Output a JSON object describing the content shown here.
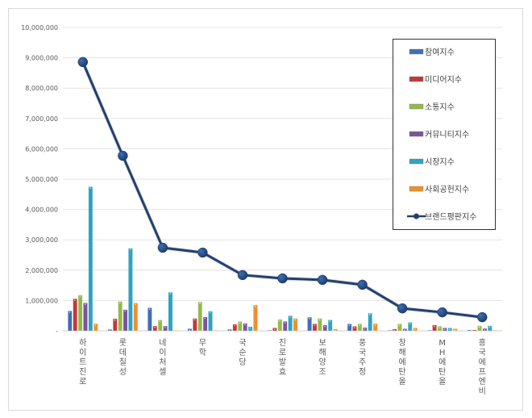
{
  "chart_data": {
    "type": "bar",
    "title": "",
    "xlabel": "",
    "ylabel": "",
    "ylim": [
      0,
      10000000
    ],
    "yticks": [
      "-",
      "1,000,000",
      "2,000,000",
      "3,000,000",
      "4,000,000",
      "5,000,000",
      "6,000,000",
      "7,000,000",
      "8,000,000",
      "9,000,000",
      "10,000,000"
    ],
    "grid": true,
    "legend_position": "right",
    "categories": [
      "하이트진로",
      "롯데칠성",
      "네이처셀",
      "무학",
      "국순당",
      "진로발효",
      "보해양조",
      "풍국주정",
      "창해에탄올",
      "MH에탄올",
      "흥국에프엔비"
    ],
    "series": [
      {
        "name": "참여지수",
        "type": "bar",
        "color": "#3f6fb5",
        "values": [
          660000,
          50000,
          760000,
          70000,
          50000,
          20000,
          450000,
          230000,
          20000,
          20000,
          30000
        ]
      },
      {
        "name": "미디어지수",
        "type": "bar",
        "color": "#c0393b",
        "values": [
          1060000,
          400000,
          160000,
          410000,
          220000,
          100000,
          230000,
          150000,
          60000,
          190000,
          30000
        ]
      },
      {
        "name": "소통지수",
        "type": "bar",
        "color": "#94b94a",
        "values": [
          1180000,
          970000,
          360000,
          950000,
          310000,
          380000,
          410000,
          230000,
          230000,
          150000,
          170000
        ]
      },
      {
        "name": "커뮤니티지수",
        "type": "bar",
        "color": "#7b559c",
        "values": [
          920000,
          700000,
          160000,
          460000,
          250000,
          310000,
          190000,
          110000,
          70000,
          100000,
          80000
        ]
      },
      {
        "name": "시장지수",
        "type": "bar",
        "color": "#2fa3c0",
        "values": [
          4750000,
          2720000,
          1270000,
          650000,
          140000,
          500000,
          360000,
          580000,
          280000,
          100000,
          170000
        ]
      },
      {
        "name": "사회공헌지수",
        "type": "bar",
        "color": "#ee8f2e",
        "values": [
          240000,
          920000,
          20000,
          20000,
          850000,
          410000,
          60000,
          240000,
          100000,
          70000,
          20000
        ]
      },
      {
        "name": "브랜드평판지수",
        "type": "line",
        "color": "#243f6b",
        "values": [
          8860000,
          5770000,
          2740000,
          2580000,
          1840000,
          1730000,
          1680000,
          1520000,
          740000,
          610000,
          450000
        ]
      }
    ]
  }
}
